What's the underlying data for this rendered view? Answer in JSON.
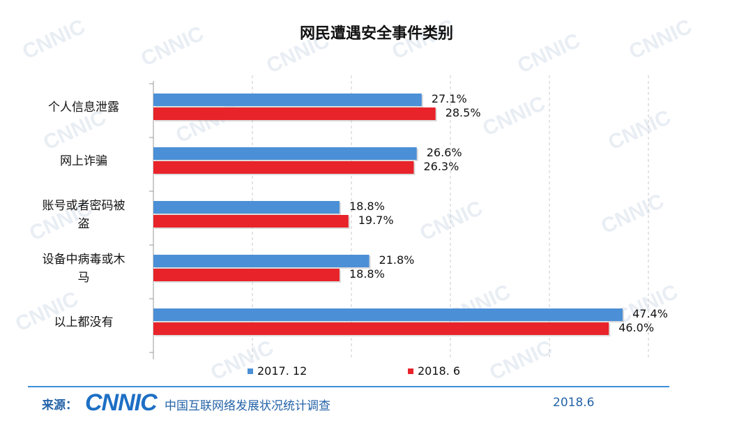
{
  "chart_data": {
    "type": "bar",
    "orientation": "horizontal",
    "title": "网民遭遇安全事件类别",
    "categories": [
      "个人信息泄露",
      "网上诈骗",
      "账号或者密码被盗",
      "设备中病毒或木马",
      "以上都没有"
    ],
    "category_lines": [
      [
        "个人信息泄露"
      ],
      [
        "网上诈骗"
      ],
      [
        "账号或者密码被",
        "盗"
      ],
      [
        "设备中病毒或木",
        "马"
      ],
      [
        "以上都没有"
      ]
    ],
    "series": [
      {
        "name": "2017. 12",
        "color": "#4b8fd6",
        "values": [
          27.1,
          26.6,
          18.8,
          21.8,
          47.4
        ],
        "labels": [
          "27.1%",
          "26.6%",
          "18.8%",
          "21.8%",
          "47.4%"
        ]
      },
      {
        "name": "2018. 6",
        "color": "#e8232a",
        "values": [
          28.5,
          26.3,
          19.7,
          18.8,
          46.0
        ],
        "labels": [
          "28.5%",
          "26.3%",
          "19.7%",
          "18.8%",
          "46.0%"
        ]
      }
    ],
    "xlim": [
      0,
      50
    ],
    "grid": "vertical dashed",
    "legend": "bottom"
  },
  "footer": {
    "source_label": "来源：",
    "logo_text": "CNNIC",
    "report_name": "中国互联网络发展状况统计调查",
    "date": "2018.6"
  }
}
